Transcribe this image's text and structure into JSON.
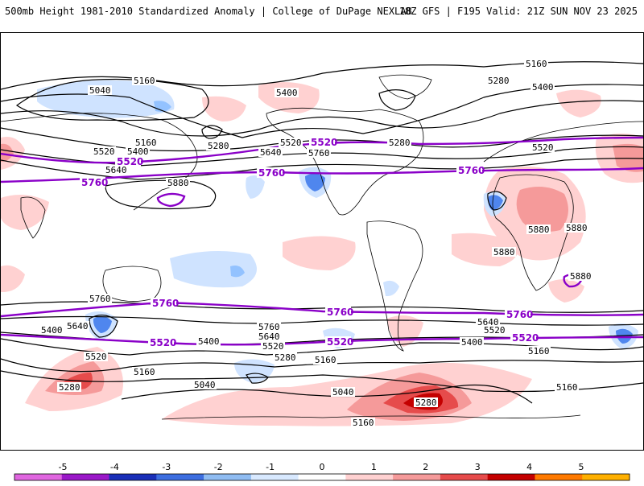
{
  "header": {
    "title": "500mb Height 1981-2010 Standardized Anomaly | College of DuPage NEXLAB",
    "run_info": "18Z GFS | F195 Valid: 21Z SUN NOV 23 2025"
  },
  "map": {
    "contour_labels_black": [
      "5160",
      "5280",
      "5400",
      "5040",
      "5160",
      "5280",
      "5400",
      "5520",
      "5640",
      "5760",
      "5520",
      "5640",
      "5520",
      "5400",
      "5280",
      "5160",
      "5880",
      "5880",
      "5880",
      "5880",
      "5880",
      "5760",
      "5640",
      "5760",
      "5400",
      "5520",
      "5640",
      "5520",
      "5400",
      "5280",
      "5160",
      "5040",
      "5280",
      "5160",
      "5040",
      "5160",
      "5280",
      "5160",
      "5160",
      "5400",
      "5520",
      "5640"
    ],
    "contour_labels_purple": [
      "5520",
      "5760",
      "5760",
      "5520",
      "5760",
      "5760",
      "5520",
      "5760",
      "5760",
      "5520",
      "5520"
    ],
    "purple_levels": {
      "lower": "5520",
      "upper": "5760",
      "high": "5880"
    },
    "anomaly_colors": {
      "pos1": "#ffd1d1",
      "pos2": "#f59a9a",
      "pos3": "#e64b4b",
      "pos4": "#c40000",
      "neg1": "#cfe3ff",
      "neg2": "#93c2ff",
      "neg3": "#4f86ee",
      "neg4": "#1636c8"
    }
  },
  "colorbar": {
    "ticks": [
      "-5",
      "-4",
      "-3",
      "-2",
      "-1",
      "0",
      "1",
      "2",
      "3",
      "4",
      "5"
    ],
    "colors": [
      "#e066e0",
      "#9a18c8",
      "#1a2fb8",
      "#3d6ee0",
      "#8fbcf2",
      "#d8e9ff",
      "#ffffff",
      "#ffd1d1",
      "#f59a9a",
      "#e64b4b",
      "#c40000",
      "#ff7a00",
      "#ffb000"
    ]
  }
}
